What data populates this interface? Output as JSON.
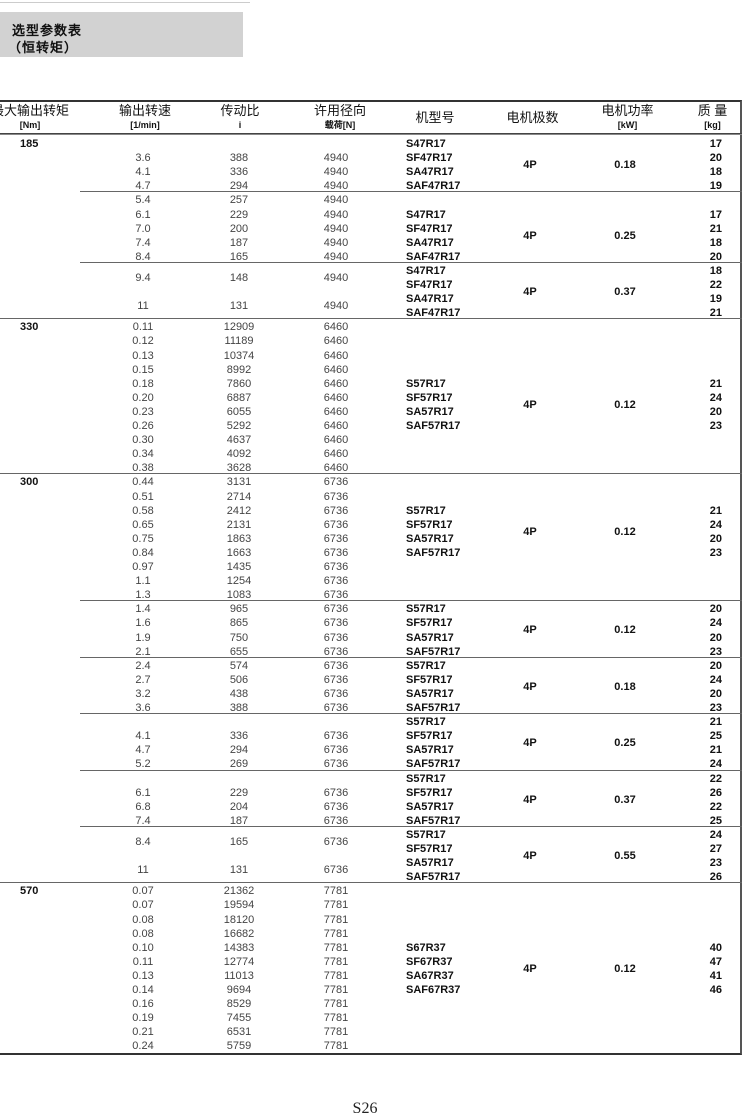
{
  "title": {
    "line1": "选型参数表",
    "line2": "（恒转矩）"
  },
  "headers": [
    {
      "label": "最大输出转矩",
      "unit": "[Nm]"
    },
    {
      "label": "输出转速",
      "unit": "[1/min]"
    },
    {
      "label": "传动比",
      "unit": "i"
    },
    {
      "label": "许用径向",
      "unit": "载荷[N]"
    },
    {
      "label": "机型号",
      "unit": ""
    },
    {
      "label": "电机极数",
      "unit": ""
    },
    {
      "label": "电机功率",
      "unit": "[kW]"
    },
    {
      "label": "质 量",
      "unit": "[kg]"
    }
  ],
  "sections": [
    {
      "torque": "185",
      "groups": [
        {
          "rows": [
            [
              "3.6",
              "388",
              "4940"
            ],
            [
              "4.1",
              "336",
              "4940"
            ],
            [
              "4.7",
              "294",
              "4940"
            ]
          ],
          "models": [
            "S47R17",
            "SF47R17",
            "SA47R17",
            "SAF47R17"
          ],
          "poles": "4P",
          "power": "0.18",
          "masses": [
            "17",
            "20",
            "18",
            "19"
          ]
        },
        {
          "rows": [
            [
              "5.4",
              "257",
              "4940"
            ],
            [
              "6.1",
              "229",
              "4940"
            ],
            [
              "7.0",
              "200",
              "4940"
            ],
            [
              "7.4",
              "187",
              "4940"
            ],
            [
              "8.4",
              "165",
              "4940"
            ]
          ],
          "models": [
            "S47R17",
            "SF47R17",
            "SA47R17",
            "SAF47R17"
          ],
          "poles": "4P",
          "power": "0.25",
          "masses": [
            "17",
            "21",
            "18",
            "20"
          ]
        },
        {
          "rows": [
            [
              "9.4",
              "148",
              "4940"
            ],
            [
              "11",
              "131",
              "4940"
            ]
          ],
          "models": [
            "S47R17",
            "SF47R17",
            "SA47R17",
            "SAF47R17"
          ],
          "poles": "4P",
          "power": "0.37",
          "masses": [
            "18",
            "22",
            "19",
            "21"
          ]
        }
      ]
    },
    {
      "torque": "330",
      "groups": [
        {
          "rows": [
            [
              "0.11",
              "12909",
              "6460"
            ],
            [
              "0.12",
              "11189",
              "6460"
            ],
            [
              "0.13",
              "10374",
              "6460"
            ],
            [
              "0.15",
              "8992",
              "6460"
            ],
            [
              "0.18",
              "7860",
              "6460"
            ],
            [
              "0.20",
              "6887",
              "6460"
            ],
            [
              "0.23",
              "6055",
              "6460"
            ],
            [
              "0.26",
              "5292",
              "6460"
            ],
            [
              "0.30",
              "4637",
              "6460"
            ],
            [
              "0.34",
              "4092",
              "6460"
            ],
            [
              "0.38",
              "3628",
              "6460"
            ]
          ],
          "models": [
            "S57R17",
            "SF57R17",
            "SA57R17",
            "SAF57R17"
          ],
          "poles": "4P",
          "power": "0.12",
          "masses": [
            "21",
            "24",
            "20",
            "23"
          ]
        }
      ]
    },
    {
      "torque": "300",
      "groups": [
        {
          "rows": [
            [
              "0.44",
              "3131",
              "6736"
            ],
            [
              "0.51",
              "2714",
              "6736"
            ],
            [
              "0.58",
              "2412",
              "6736"
            ],
            [
              "0.65",
              "2131",
              "6736"
            ],
            [
              "0.75",
              "1863",
              "6736"
            ],
            [
              "0.84",
              "1663",
              "6736"
            ],
            [
              "0.97",
              "1435",
              "6736"
            ],
            [
              "1.1",
              "1254",
              "6736"
            ],
            [
              "1.3",
              "1083",
              "6736"
            ]
          ],
          "models": [
            "S57R17",
            "SF57R17",
            "SA57R17",
            "SAF57R17"
          ],
          "poles": "4P",
          "power": "0.12",
          "masses": [
            "21",
            "24",
            "20",
            "23"
          ]
        },
        {
          "rows": [
            [
              "1.4",
              "965",
              "6736"
            ],
            [
              "1.6",
              "865",
              "6736"
            ],
            [
              "1.9",
              "750",
              "6736"
            ],
            [
              "2.1",
              "655",
              "6736"
            ]
          ],
          "models": [
            "S57R17",
            "SF57R17",
            "SA57R17",
            "SAF57R17"
          ],
          "poles": "4P",
          "power": "0.12",
          "masses": [
            "20",
            "24",
            "20",
            "23"
          ]
        },
        {
          "rows": [
            [
              "2.4",
              "574",
              "6736"
            ],
            [
              "2.7",
              "506",
              "6736"
            ],
            [
              "3.2",
              "438",
              "6736"
            ],
            [
              "3.6",
              "388",
              "6736"
            ]
          ],
          "models": [
            "S57R17",
            "SF57R17",
            "SA57R17",
            "SAF57R17"
          ],
          "poles": "4P",
          "power": "0.18",
          "masses": [
            "20",
            "24",
            "20",
            "23"
          ]
        },
        {
          "rows": [
            [
              "4.1",
              "336",
              "6736"
            ],
            [
              "4.7",
              "294",
              "6736"
            ],
            [
              "5.2",
              "269",
              "6736"
            ]
          ],
          "models": [
            "S57R17",
            "SF57R17",
            "SA57R17",
            "SAF57R17"
          ],
          "poles": "4P",
          "power": "0.25",
          "masses": [
            "21",
            "25",
            "21",
            "24"
          ]
        },
        {
          "rows": [
            [
              "6.1",
              "229",
              "6736"
            ],
            [
              "6.8",
              "204",
              "6736"
            ],
            [
              "7.4",
              "187",
              "6736"
            ]
          ],
          "models": [
            "S57R17",
            "SF57R17",
            "SA57R17",
            "SAF57R17"
          ],
          "poles": "4P",
          "power": "0.37",
          "masses": [
            "22",
            "26",
            "22",
            "25"
          ]
        },
        {
          "rows": [
            [
              "8.4",
              "165",
              "6736"
            ],
            [
              "11",
              "131",
              "6736"
            ]
          ],
          "models": [
            "S57R17",
            "SF57R17",
            "SA57R17",
            "SAF57R17"
          ],
          "poles": "4P",
          "power": "0.55",
          "masses": [
            "24",
            "27",
            "23",
            "26"
          ]
        }
      ]
    },
    {
      "torque": "570",
      "groups": [
        {
          "rows": [
            [
              "0.07",
              "21362",
              "7781"
            ],
            [
              "0.07",
              "19594",
              "7781"
            ],
            [
              "0.08",
              "18120",
              "7781"
            ],
            [
              "0.08",
              "16682",
              "7781"
            ],
            [
              "0.10",
              "14383",
              "7781"
            ],
            [
              "0.11",
              "12774",
              "7781"
            ],
            [
              "0.13",
              "11013",
              "7781"
            ],
            [
              "0.14",
              "9694",
              "7781"
            ],
            [
              "0.16",
              "8529",
              "7781"
            ],
            [
              "0.19",
              "7455",
              "7781"
            ],
            [
              "0.21",
              "6531",
              "7781"
            ],
            [
              "0.24",
              "5759",
              "7781"
            ]
          ],
          "models": [
            "S67R37",
            "SF67R37",
            "SA67R37",
            "SAF67R37"
          ],
          "poles": "4P",
          "power": "0.12",
          "masses": [
            "40",
            "47",
            "41",
            "46"
          ]
        }
      ]
    }
  ],
  "page_number": "S26"
}
